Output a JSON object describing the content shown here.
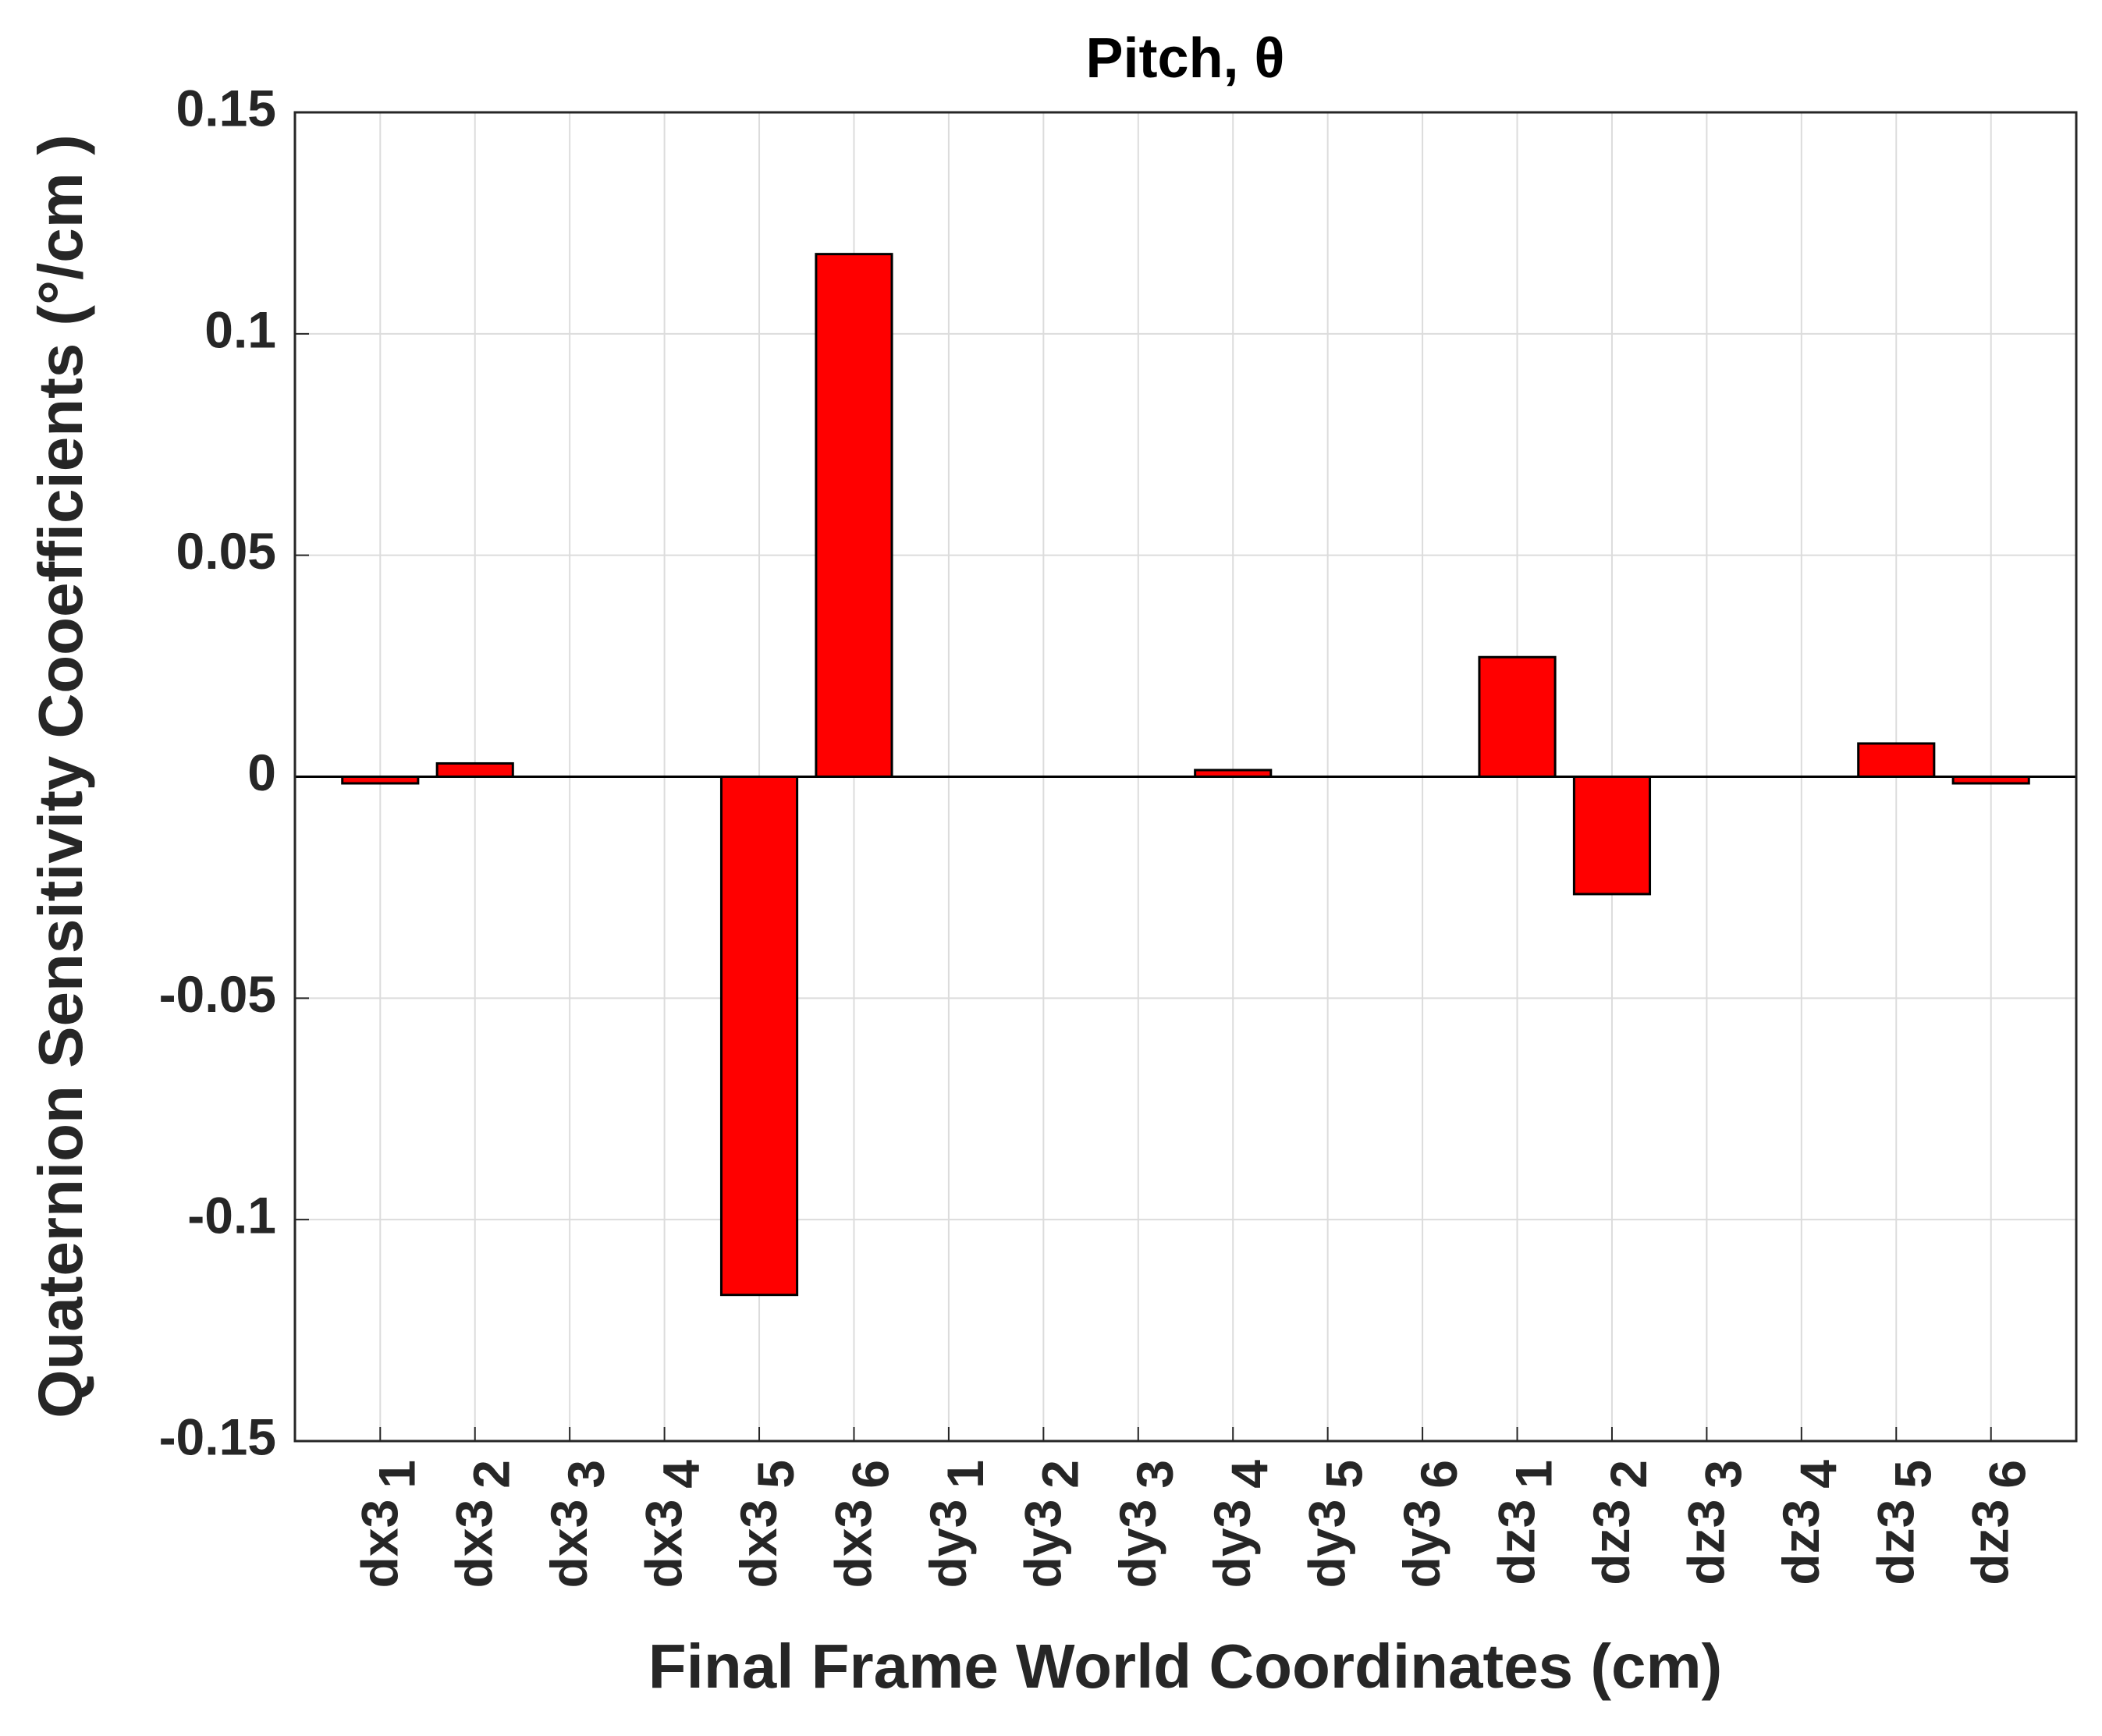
{
  "chart_data": {
    "type": "bar",
    "title": "Pitch, θ",
    "x_label": "Final Frame World Coordinates (cm)",
    "y_label": "Quaternion Sensitivity Cooefficients (°/cm )",
    "categories": [
      {
        "text": "dx3",
        "subscript": "1"
      },
      {
        "text": "dx3",
        "subscript": "2"
      },
      {
        "text": "dx3",
        "subscript": "3"
      },
      {
        "text": "dx3",
        "subscript": "4"
      },
      {
        "text": "dx3",
        "subscript": "5"
      },
      {
        "text": "dx3",
        "subscript": "6"
      },
      {
        "text": "dy3",
        "subscript": "1"
      },
      {
        "text": "dy3",
        "subscript": "2"
      },
      {
        "text": "dy3",
        "subscript": "3"
      },
      {
        "text": "dy3",
        "subscript": "4"
      },
      {
        "text": "dy3",
        "subscript": "5"
      },
      {
        "text": "dy3",
        "subscript": "6"
      },
      {
        "text": "dz3",
        "subscript": "1"
      },
      {
        "text": "dz3",
        "subscript": "2"
      },
      {
        "text": "dz3",
        "subscript": "3"
      },
      {
        "text": "dz3",
        "subscript": "4"
      },
      {
        "text": "dz3",
        "subscript": "5"
      },
      {
        "text": "dz3",
        "subscript": "6"
      }
    ],
    "values": [
      -0.0015,
      0.003,
      0,
      0,
      -0.117,
      0.118,
      0,
      0,
      0,
      0.0015,
      0,
      0,
      0.027,
      -0.0265,
      0,
      0,
      0.0075,
      -0.0015
    ],
    "color": "#ff0000",
    "ylim": [
      -0.15,
      0.15
    ],
    "yticks": [
      -0.15,
      -0.1,
      -0.05,
      0,
      0.05,
      0.1,
      0.15
    ],
    "grid": true
  }
}
